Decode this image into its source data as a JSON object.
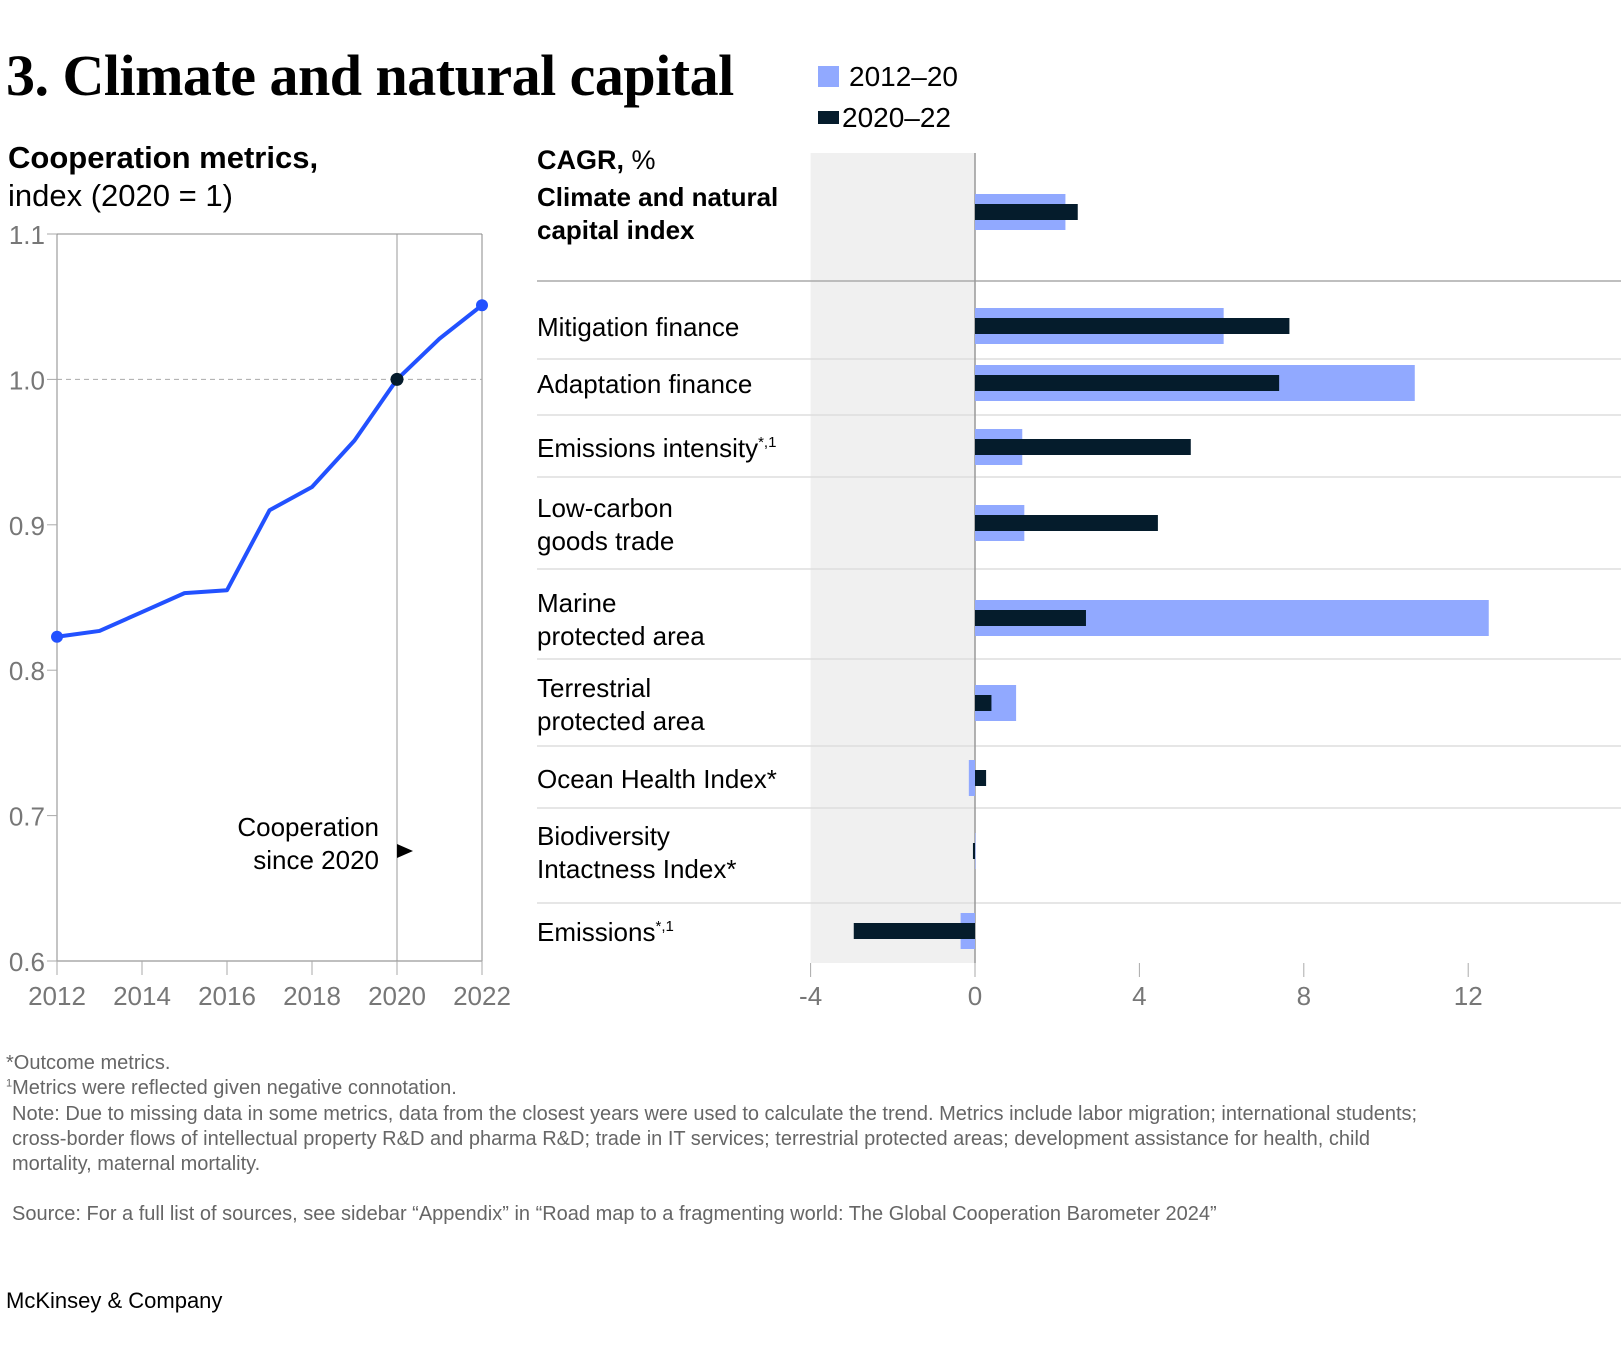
{
  "header": {
    "title": "3. Climate and natural capital",
    "legend": [
      {
        "label": "2012–20",
        "color": "#91A9FF"
      },
      {
        "label": "2020–22",
        "color": "#051C2C"
      }
    ]
  },
  "left_chart": {
    "title_bold": "Cooperation metrics,",
    "title_rest": "index (2020 = 1)",
    "annotation_line1": "Cooperation",
    "annotation_line2": "since 2020"
  },
  "right_chart": {
    "unit_bold": "CAGR,",
    "unit_rest": " %"
  },
  "chart_data": [
    {
      "type": "line",
      "title": "Cooperation metrics, index (2020 = 1)",
      "xlabel": "",
      "ylabel": "index (2020 = 1)",
      "x": [
        2012,
        2013,
        2014,
        2015,
        2016,
        2017,
        2018,
        2019,
        2020,
        2021,
        2022
      ],
      "series": [
        {
          "name": "Climate and natural capital",
          "color": "#2251FF",
          "values": [
            0.823,
            0.827,
            0.84,
            0.853,
            0.855,
            0.91,
            0.926,
            0.958,
            1.0,
            1.028,
            1.051
          ]
        }
      ],
      "xticks": [
        "2012",
        "2014",
        "2016",
        "2018",
        "2020",
        "2022"
      ],
      "yticks": [
        "0.6",
        "0.7",
        "0.8",
        "0.9",
        "1.0",
        "1.1"
      ],
      "ylim": [
        0.6,
        1.1
      ],
      "reference_line": 1.0,
      "annotation": "Cooperation since 2020"
    },
    {
      "type": "bar",
      "orientation": "horizontal",
      "title": "CAGR, %",
      "categories": [
        "Climate and natural capital index",
        "Mitigation finance",
        "Adaptation finance",
        "Emissions intensity*,1",
        "Low-carbon goods trade",
        "Marine protected area",
        "Terrestrial protected area",
        "Ocean Health Index*",
        "Biodiversity Intactness Index*",
        "Emissions*,1"
      ],
      "series": [
        {
          "name": "2012–20",
          "color": "#91A9FF",
          "values": [
            2.2,
            6.05,
            10.7,
            1.15,
            1.2,
            12.5,
            1.0,
            -0.15,
            0.0,
            -0.35
          ]
        },
        {
          "name": "2020–22",
          "color": "#051C2C",
          "values": [
            2.5,
            7.65,
            7.4,
            5.25,
            4.45,
            2.7,
            0.4,
            0.27,
            -0.05,
            -2.95
          ]
        }
      ],
      "xticks": [
        "-4",
        "0",
        "4",
        "8",
        "12"
      ],
      "xlim": [
        -4,
        14.4
      ]
    }
  ],
  "bars": {
    "rows": [
      {
        "line1": "Climate and natural",
        "line2": "capital index",
        "bold": true
      },
      {
        "line1": "Mitigation finance",
        "line2": ""
      },
      {
        "line1": "Adaptation finance",
        "line2": ""
      },
      {
        "line1": "Emissions intensity",
        "sup": "*,1",
        "line2": ""
      },
      {
        "line1": "Low-carbon",
        "line2": "goods trade"
      },
      {
        "line1": "Marine",
        "line2": "protected area"
      },
      {
        "line1": "Terrestrial",
        "line2": "protected area"
      },
      {
        "line1": "Ocean Health Index*",
        "line2": ""
      },
      {
        "line1": "Biodiversity",
        "line2": "Intactness Index*"
      },
      {
        "line1": "Emissions",
        "sup": "*,1",
        "line2": ""
      }
    ]
  },
  "footnotes": {
    "outcome": "*Outcome metrics.",
    "reflected_sup": "1",
    "reflected": "Metrics were reflected given negative connotation.",
    "note_line1": "Note: Due to missing data in some metrics, data from the closest years were used to calculate the trend. Metrics include labor migration; international students;",
    "note_line2": "cross-border flows of intellectual property R&D and pharma R&D; trade in IT services; terrestrial protected areas; development assistance for health, child",
    "note_line3": "mortality, maternal mortality.",
    "source": "Source: For a full list of sources, see sidebar “Appendix” in “Road map to a fragmenting world: The Global Cooperation Barometer 2024”"
  },
  "brand": "McKinsey & Company"
}
